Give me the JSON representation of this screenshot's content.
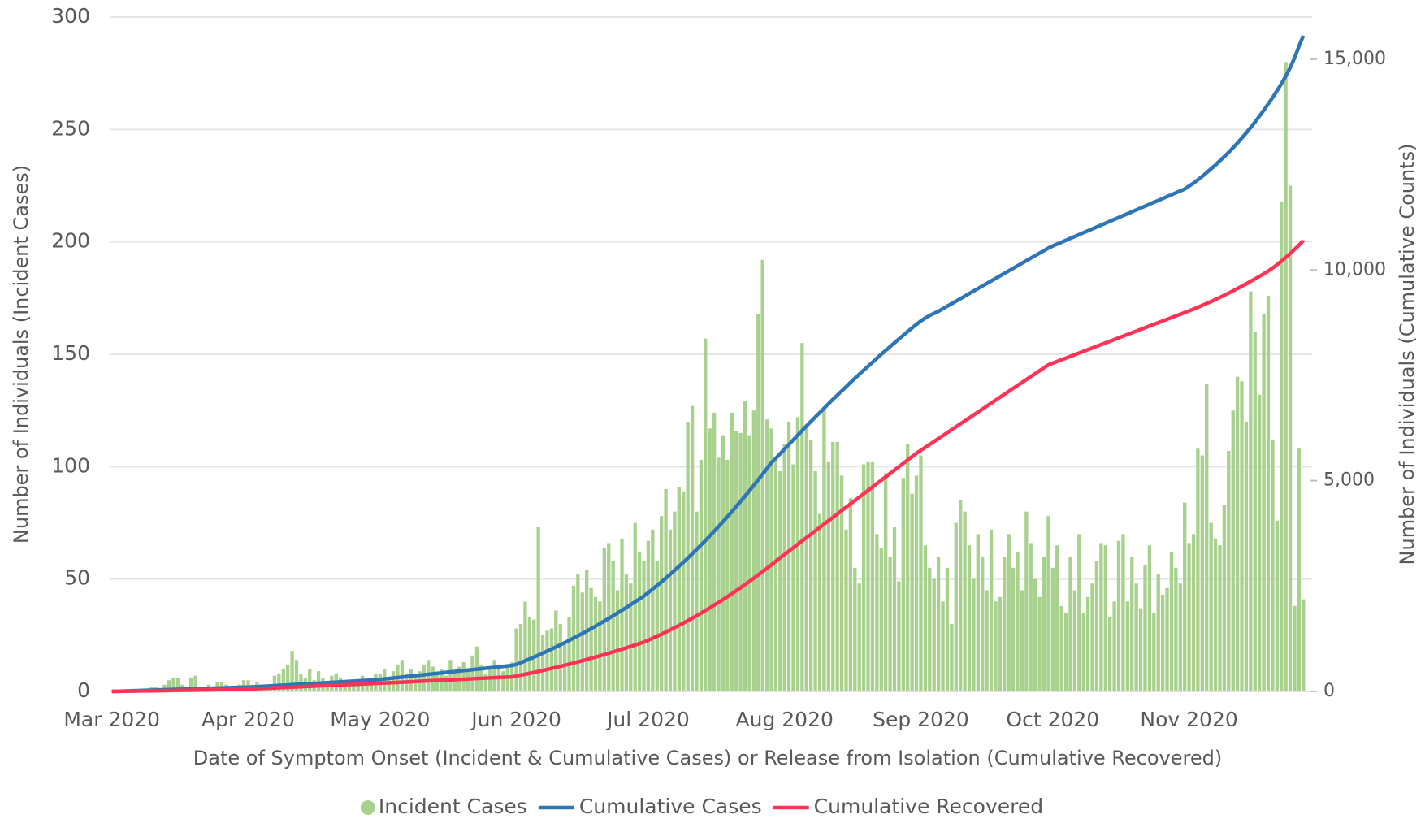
{
  "chart_data": {
    "type": "bar",
    "x_label": "Date of Symptom Onset (Incident & Cumulative Cases) or Release from Isolation (Cumulative Recovered)",
    "y_label": "Number of Individuals (Incident Cases)",
    "y2_label": "Number of Individuals (Cumulative Counts)",
    "categories": [
      "Mar 2020",
      null,
      null,
      null,
      null,
      null,
      null,
      null,
      null,
      null,
      null,
      null,
      null,
      null,
      null,
      null,
      null,
      null,
      null,
      null,
      null,
      null,
      null,
      null,
      null,
      null,
      null,
      null,
      null,
      null,
      null,
      "Apr 2020",
      null,
      null,
      null,
      null,
      null,
      null,
      null,
      null,
      null,
      null,
      null,
      null,
      null,
      null,
      null,
      null,
      null,
      null,
      null,
      null,
      null,
      null,
      null,
      null,
      null,
      null,
      null,
      null,
      null,
      "May 2020",
      null,
      null,
      null,
      null,
      null,
      null,
      null,
      null,
      null,
      null,
      null,
      null,
      null,
      null,
      null,
      null,
      null,
      null,
      null,
      null,
      null,
      null,
      null,
      null,
      null,
      null,
      null,
      null,
      null,
      null,
      "Jun 2020",
      null,
      null,
      null,
      null,
      null,
      null,
      null,
      null,
      null,
      null,
      null,
      null,
      null,
      null,
      null,
      null,
      null,
      null,
      null,
      null,
      null,
      null,
      null,
      null,
      null,
      null,
      null,
      null,
      null,
      "Jul 2020",
      null,
      null,
      null,
      null,
      null,
      null,
      null,
      null,
      null,
      null,
      null,
      null,
      null,
      null,
      null,
      null,
      null,
      null,
      null,
      null,
      null,
      null,
      null,
      null,
      null,
      null,
      null,
      null,
      null,
      null,
      "Aug 2020",
      null,
      null,
      null,
      null,
      null,
      null,
      null,
      null,
      null,
      null,
      null,
      null,
      null,
      null,
      null,
      null,
      null,
      null,
      null,
      null,
      null,
      null,
      null,
      null,
      null,
      null,
      null,
      null,
      null,
      null,
      "Sep 2020",
      null,
      null,
      null,
      null,
      null,
      null,
      null,
      null,
      null,
      null,
      null,
      null,
      null,
      null,
      null,
      null,
      null,
      null,
      null,
      null,
      null,
      null,
      null,
      null,
      null,
      null,
      null,
      null,
      null,
      "Oct 2020",
      null,
      null,
      null,
      null,
      null,
      null,
      null,
      null,
      null,
      null,
      null,
      null,
      null,
      null,
      null,
      null,
      null,
      null,
      null,
      null,
      null,
      null,
      null,
      null,
      null,
      null,
      null,
      null,
      null,
      null,
      "Nov 2020",
      null,
      null,
      null,
      null,
      null,
      null,
      null,
      null,
      null,
      null,
      null,
      null,
      null,
      null,
      null,
      null,
      null,
      null,
      null,
      null,
      null,
      null,
      null,
      null,
      null,
      null
    ],
    "series": [
      {
        "name": "Incident Cases",
        "type": "bar",
        "color": "#a9d18e",
        "values": [
          0,
          0,
          0,
          0,
          0,
          0,
          0,
          1,
          1,
          2,
          2,
          1,
          3,
          5,
          6,
          6,
          3,
          2,
          6,
          7,
          2,
          2,
          3,
          2,
          4,
          4,
          3,
          2,
          2,
          3,
          5,
          5,
          3,
          4,
          3,
          2,
          3,
          7,
          8,
          10,
          12,
          18,
          14,
          8,
          6,
          10,
          5,
          9,
          6,
          4,
          7,
          8,
          6,
          5,
          4,
          3,
          5,
          7,
          4,
          6,
          8,
          8,
          10,
          6,
          9,
          12,
          14,
          8,
          10,
          7,
          9,
          12,
          14,
          11,
          8,
          10,
          7,
          14,
          9,
          11,
          13,
          10,
          16,
          20,
          12,
          8,
          10,
          14,
          12,
          9,
          11,
          13,
          28,
          30,
          40,
          33,
          32,
          73,
          25,
          27,
          28,
          36,
          30,
          22,
          33,
          47,
          52,
          44,
          54,
          46,
          42,
          40,
          64,
          66,
          58,
          45,
          68,
          52,
          48,
          75,
          62,
          58,
          67,
          72,
          58,
          78,
          90,
          72,
          80,
          91,
          89,
          120,
          127,
          80,
          103,
          157,
          117,
          124,
          104,
          114,
          103,
          124,
          116,
          115,
          129,
          114,
          125,
          168,
          192,
          121,
          117,
          103,
          98,
          110,
          120,
          101,
          122,
          155,
          118,
          112,
          98,
          79,
          126,
          102,
          111,
          111,
          96,
          72,
          86,
          55,
          48,
          101,
          102,
          102,
          70,
          64,
          97,
          60,
          73,
          49,
          95,
          110,
          88,
          96,
          105,
          65,
          55,
          50,
          60,
          40,
          55,
          30,
          75,
          85,
          80,
          65,
          50,
          70,
          60,
          45,
          72,
          40,
          42,
          60,
          70,
          55,
          62,
          45,
          80,
          66,
          50,
          42,
          60,
          78,
          55,
          65,
          38,
          35,
          60,
          45,
          70,
          35,
          42,
          48,
          58,
          66,
          65,
          33,
          40,
          67,
          70,
          40,
          60,
          48,
          37,
          56,
          65,
          35,
          52,
          43,
          46,
          62,
          55,
          48,
          84,
          66,
          70,
          108,
          105,
          137,
          75,
          68,
          65,
          83,
          107,
          125,
          140,
          138,
          120,
          178,
          160,
          132,
          168,
          176,
          112,
          76,
          218,
          280,
          225,
          38,
          108,
          41
        ]
      },
      {
        "name": "Cumulative Cases",
        "type": "line",
        "axis": "y2",
        "color": "#2e75b6",
        "values": [
          0,
          3,
          6,
          10,
          13,
          16,
          20,
          23,
          26,
          30,
          33,
          36,
          40,
          43,
          46,
          50,
          53,
          56,
          60,
          63,
          66,
          70,
          73,
          76,
          80,
          83,
          86,
          90,
          93,
          96,
          98,
          100,
          106,
          112,
          118,
          124,
          130,
          136,
          142,
          148,
          154,
          160,
          166,
          172,
          178,
          184,
          190,
          196,
          202,
          208,
          214,
          220,
          226,
          232,
          238,
          244,
          250,
          256,
          262,
          268,
          274,
          285,
          296,
          307,
          318,
          329,
          340,
          351,
          362,
          373,
          384,
          395,
          406,
          417,
          428,
          439,
          450,
          461,
          472,
          483,
          494,
          505,
          516,
          527,
          538,
          549,
          560,
          571,
          582,
          593,
          604,
          615,
          640,
          682,
          725,
          769,
          814,
          860,
          907,
          955,
          1004,
          1054,
          1105,
          1157,
          1210,
          1264,
          1319,
          1375,
          1432,
          1490,
          1549,
          1609,
          1670,
          1732,
          1795,
          1859,
          1924,
          1990,
          2057,
          2125,
          2194,
          2264,
          2345,
          2428,
          2513,
          2600,
          2689,
          2780,
          2873,
          2968,
          3065,
          3164,
          3265,
          3368,
          3473,
          3580,
          3689,
          3800,
          3913,
          4028,
          4145,
          4264,
          4385,
          4508,
          4633,
          4760,
          4889,
          5020,
          5153,
          5288,
          5425,
          5530,
          5640,
          5750,
          5860,
          5970,
          6080,
          6190,
          6300,
          6405,
          6510,
          6615,
          6720,
          6825,
          6930,
          7030,
          7130,
          7230,
          7330,
          7430,
          7525,
          7620,
          7715,
          7810,
          7905,
          8000,
          8090,
          8180,
          8270,
          8360,
          8450,
          8540,
          8625,
          8710,
          8790,
          8860,
          8920,
          8970,
          9020,
          9080,
          9140,
          9200,
          9260,
          9320,
          9380,
          9440,
          9500,
          9560,
          9620,
          9680,
          9740,
          9800,
          9860,
          9920,
          9980,
          10040,
          10100,
          10160,
          10220,
          10280,
          10340,
          10400,
          10460,
          10520,
          10570,
          10615,
          10660,
          10705,
          10750,
          10795,
          10840,
          10885,
          10930,
          10975,
          11020,
          11065,
          11110,
          11155,
          11200,
          11245,
          11290,
          11335,
          11380,
          11425,
          11470,
          11515,
          11560,
          11605,
          11650,
          11695,
          11740,
          11785,
          11830,
          11875,
          11920,
          11990,
          12060,
          12140,
          12220,
          12310,
          12400,
          12490,
          12590,
          12690,
          12790,
          12900,
          13010,
          13130,
          13250,
          13380,
          13510,
          13650,
          13790,
          13940,
          14090,
          14250,
          14420,
          14600,
          14800,
          15030,
          15310,
          15560
        ]
      },
      {
        "name": "Cumulative Recovered",
        "type": "line",
        "axis": "y2",
        "color": "#ff3355",
        "values": [
          0,
          2,
          3,
          5,
          7,
          8,
          10,
          12,
          13,
          15,
          17,
          18,
          20,
          22,
          23,
          25,
          27,
          28,
          30,
          32,
          33,
          35,
          37,
          38,
          40,
          42,
          43,
          45,
          47,
          48,
          50,
          55,
          60,
          64,
          69,
          74,
          78,
          83,
          88,
          92,
          97,
          102,
          106,
          111,
          116,
          120,
          125,
          130,
          134,
          139,
          144,
          148,
          153,
          158,
          162,
          167,
          172,
          176,
          181,
          186,
          190,
          195,
          200,
          205,
          210,
          215,
          220,
          225,
          230,
          235,
          240,
          245,
          250,
          255,
          260,
          265,
          270,
          275,
          280,
          285,
          290,
          295,
          300,
          305,
          310,
          315,
          320,
          325,
          330,
          335,
          340,
          345,
          365,
          386,
          407,
          429,
          451,
          474,
          497,
          521,
          545,
          570,
          595,
          621,
          647,
          674,
          701,
          729,
          757,
          786,
          815,
          845,
          875,
          906,
          937,
          969,
          1001,
          1034,
          1067,
          1101,
          1135,
          1170,
          1215,
          1261,
          1309,
          1358,
          1408,
          1460,
          1513,
          1567,
          1622,
          1679,
          1737,
          1796,
          1857,
          1919,
          1982,
          2047,
          2113,
          2180,
          2248,
          2318,
          2389,
          2461,
          2535,
          2610,
          2686,
          2764,
          2843,
          2923,
          3004,
          3087,
          3171,
          3250,
          3330,
          3410,
          3490,
          3570,
          3650,
          3730,
          3810,
          3890,
          3970,
          4050,
          4130,
          4210,
          4290,
          4370,
          4450,
          4530,
          4610,
          4690,
          4770,
          4850,
          4930,
          5010,
          5090,
          5170,
          5250,
          5330,
          5410,
          5490,
          5570,
          5650,
          5720,
          5790,
          5860,
          5930,
          6000,
          6070,
          6140,
          6210,
          6280,
          6350,
          6420,
          6490,
          6560,
          6630,
          6700,
          6770,
          6840,
          6910,
          6980,
          7050,
          7120,
          7190,
          7260,
          7330,
          7400,
          7470,
          7540,
          7610,
          7680,
          7750,
          7790,
          7830,
          7870,
          7910,
          7950,
          7990,
          8030,
          8070,
          8110,
          8150,
          8190,
          8230,
          8270,
          8310,
          8350,
          8390,
          8430,
          8470,
          8510,
          8550,
          8590,
          8630,
          8670,
          8710,
          8750,
          8790,
          8830,
          8870,
          8910,
          8950,
          8990,
          9030,
          9070,
          9115,
          9160,
          9205,
          9250,
          9300,
          9350,
          9400,
          9450,
          9505,
          9560,
          9615,
          9670,
          9730,
          9790,
          9850,
          9910,
          9975,
          10045,
          10125,
          10210,
          10300,
          10390,
          10490,
          10590,
          10700
        ]
      }
    ],
    "ylim": [
      0,
      300
    ],
    "yticks": [
      0,
      50,
      100,
      150,
      200,
      250,
      300
    ],
    "y2lim": [
      0,
      16000
    ],
    "y2ticks": [
      0,
      {
        "value": 5000,
        "label": "5,000"
      },
      {
        "value": 10000,
        "label": "10,000"
      },
      {
        "value": 15000,
        "label": "15,000"
      }
    ],
    "grid": true,
    "legend": "bottom"
  }
}
